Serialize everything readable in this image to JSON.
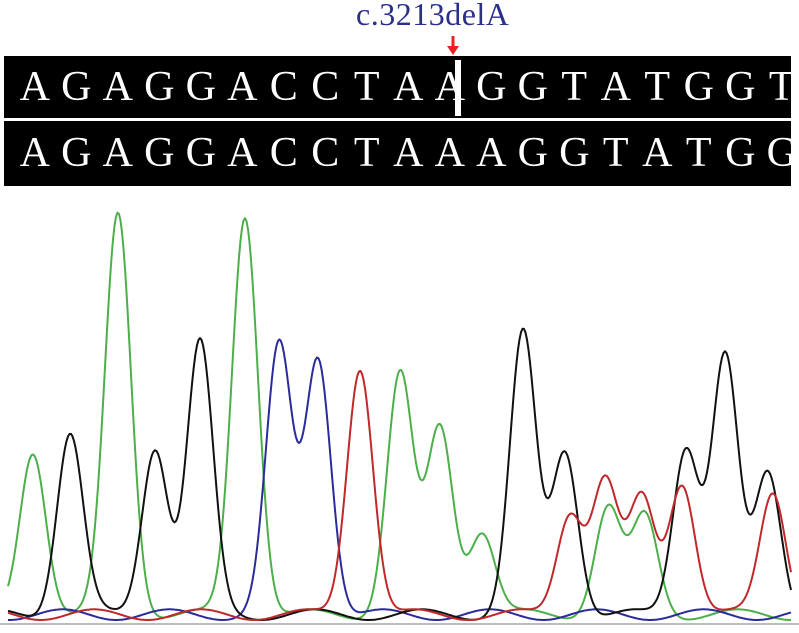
{
  "mutation_label": "c.3213delA",
  "arrow_color": "#e8231f",
  "sequences": {
    "reference": [
      "A",
      "G",
      "A",
      "G",
      "G",
      "A",
      "C",
      "C",
      "T",
      "A",
      "A",
      "G",
      "G",
      "T",
      "A",
      "T",
      "G",
      "G",
      "T"
    ],
    "sample": [
      "A",
      "G",
      "A",
      "G",
      "G",
      "A",
      "C",
      "C",
      "T",
      "A",
      "A",
      "A",
      "G",
      "G",
      "T",
      "A",
      "T",
      "G",
      "G"
    ]
  },
  "chart_data": {
    "type": "line",
    "channels": [
      {
        "base": "A",
        "color": "#4caf4a"
      },
      {
        "base": "C",
        "color": "#2b2b9c"
      },
      {
        "base": "G",
        "color": "#111111"
      },
      {
        "base": "T",
        "color": "#c0282a"
      }
    ],
    "peaks": [
      {
        "base": "A",
        "x": 33,
        "h": 0.37
      },
      {
        "base": "G",
        "x": 70,
        "h": 0.41
      },
      {
        "base": "A",
        "x": 118,
        "h": 0.9
      },
      {
        "base": "G",
        "x": 155,
        "h": 0.38
      },
      {
        "base": "G",
        "x": 200,
        "h": 0.61
      },
      {
        "base": "A",
        "x": 245,
        "h": 0.9
      },
      {
        "base": "C",
        "x": 279,
        "h": 0.6
      },
      {
        "base": "C",
        "x": 318,
        "h": 0.58
      },
      {
        "base": "T",
        "x": 360,
        "h": 0.56
      },
      {
        "base": "A",
        "x": 400,
        "h": 0.54
      },
      {
        "base": "A",
        "x": 440,
        "h": 0.42
      },
      {
        "base": "A",
        "x": 482,
        "h": 0.19
      },
      {
        "base": "G",
        "x": 523,
        "h": 0.63
      },
      {
        "base": "T",
        "x": 570,
        "h": 0.23
      },
      {
        "base": "G",
        "x": 565,
        "h": 0.37
      },
      {
        "base": "T",
        "x": 605,
        "h": 0.3
      },
      {
        "base": "A",
        "x": 608,
        "h": 0.24
      },
      {
        "base": "T",
        "x": 642,
        "h": 0.26
      },
      {
        "base": "A",
        "x": 645,
        "h": 0.22
      },
      {
        "base": "T",
        "x": 682,
        "h": 0.3
      },
      {
        "base": "G",
        "x": 686,
        "h": 0.38
      },
      {
        "base": "G",
        "x": 725,
        "h": 0.58
      },
      {
        "base": "T",
        "x": 773,
        "h": 0.28
      },
      {
        "base": "G",
        "x": 768,
        "h": 0.32
      }
    ]
  }
}
